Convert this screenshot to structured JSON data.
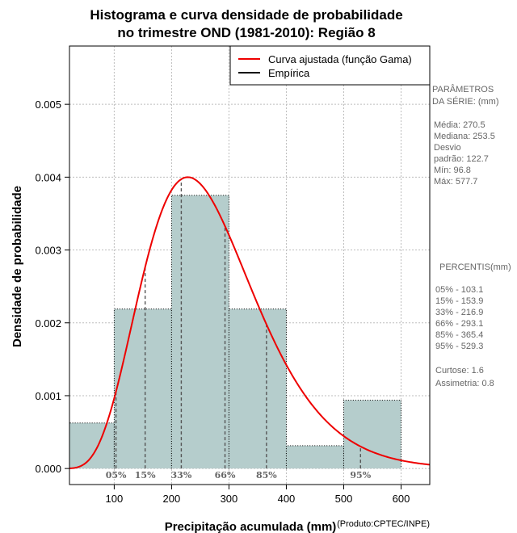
{
  "chart_data": {
    "type": "bar",
    "title_line1": "Histograma e curva densidade de probabilidade",
    "title_line2": "no trimestre OND (1981-2010): Região 8",
    "xlabel": "Precipitação acumulada (mm)",
    "ylabel": "Densidade de probabilidade",
    "credit": "(Produto:CPTEC/INPE)",
    "xlim": [
      22,
      650
    ],
    "ylim": [
      -0.00022,
      0.0058
    ],
    "x_ticks": [
      100,
      200,
      300,
      400,
      500,
      600
    ],
    "y_ticks": [
      0.0,
      0.001,
      0.002,
      0.003,
      0.004,
      0.005
    ],
    "y_tick_labels": [
      "0.000",
      "0.001",
      "0.002",
      "0.003",
      "0.004",
      "0.005"
    ],
    "grid": true,
    "bar_color": "#b5cdcc",
    "curve_color": "#ee0000",
    "bins": [
      {
        "from": 0,
        "to": 100,
        "density": 0.000625
      },
      {
        "from": 100,
        "to": 200,
        "density": 0.00219
      },
      {
        "from": 200,
        "to": 300,
        "density": 0.00375
      },
      {
        "from": 300,
        "to": 400,
        "density": 0.00219
      },
      {
        "from": 400,
        "to": 500,
        "density": 0.000313
      },
      {
        "from": 500,
        "to": 600,
        "density": 0.000938
      }
    ],
    "gamma_fit": {
      "mean": 270.5,
      "shape": 6.4,
      "note": "Curva ajustada (função Gama)"
    },
    "legend": {
      "position": "top-right",
      "entries": [
        {
          "label": "Curva ajustada (função Gama)",
          "color": "#ee0000"
        },
        {
          "label": "Empírica",
          "color": "#000000"
        }
      ]
    },
    "percentile_lines": [
      {
        "label": "05%",
        "value": 103.1
      },
      {
        "label": "15%",
        "value": 153.9
      },
      {
        "label": "33%",
        "value": 216.9
      },
      {
        "label": "66%",
        "value": 293.1
      },
      {
        "label": "85%",
        "value": 365.4
      },
      {
        "label": "95%",
        "value": 529.3
      }
    ]
  },
  "side_panel": {
    "params_lines": [
      "PARÂMETROS",
      " DA SÉRIE: (mm)"
    ],
    "stats_lines": [
      "Média:  270.5",
      "Mediana:  253.5",
      "Desvio",
      "padrão:  122.7",
      "Mín:  96.8",
      "Máx:  577.7"
    ],
    "percentis_title": "PERCENTIS(mm)",
    "percentis_lines": [
      "05% -  103.1",
      "15% -  153.9",
      "33% -  216.9",
      "66% -  293.1",
      "85% -  365.4",
      "95% -  529.3"
    ],
    "shape_lines": [
      "Curtose:  1.6",
      "Assimetria:  0.8"
    ]
  }
}
